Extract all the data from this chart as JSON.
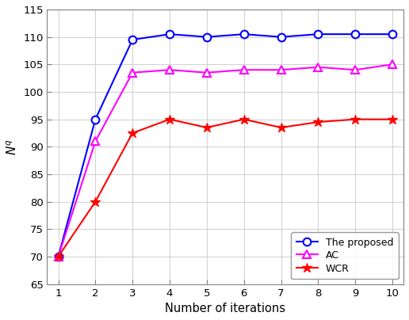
{
  "x": [
    1,
    2,
    3,
    4,
    5,
    6,
    7,
    8,
    9,
    10
  ],
  "proposed": [
    70,
    95,
    109.5,
    110.5,
    110,
    110.5,
    110,
    110.5,
    110.5,
    110.5
  ],
  "ac": [
    70,
    91,
    103.5,
    104,
    103.5,
    104,
    104,
    104.5,
    104,
    105
  ],
  "wcr": [
    70,
    80,
    92.5,
    95,
    93.5,
    95,
    93.5,
    94.5,
    95,
    95
  ],
  "proposed_color": "#0000ff",
  "ac_color": "#ff00ff",
  "wcr_color": "#ff0000",
  "xlabel": "Number of iterations",
  "ylabel": "$N^q$",
  "ylim": [
    65,
    115
  ],
  "xlim": [
    0.7,
    10.3
  ],
  "yticks": [
    65,
    70,
    75,
    80,
    85,
    90,
    95,
    100,
    105,
    110,
    115
  ],
  "xticks": [
    1,
    2,
    3,
    4,
    5,
    6,
    7,
    8,
    9,
    10
  ],
  "legend_labels": [
    "The proposed",
    "AC",
    "WCR"
  ],
  "legend_loc": "lower right",
  "linewidth": 1.5,
  "markersize_circle": 7,
  "markersize_triangle": 7,
  "markersize_asterisk": 9,
  "grid_color": "#d3d3d3",
  "tick_color": "#808080",
  "spine_color": "#808080"
}
